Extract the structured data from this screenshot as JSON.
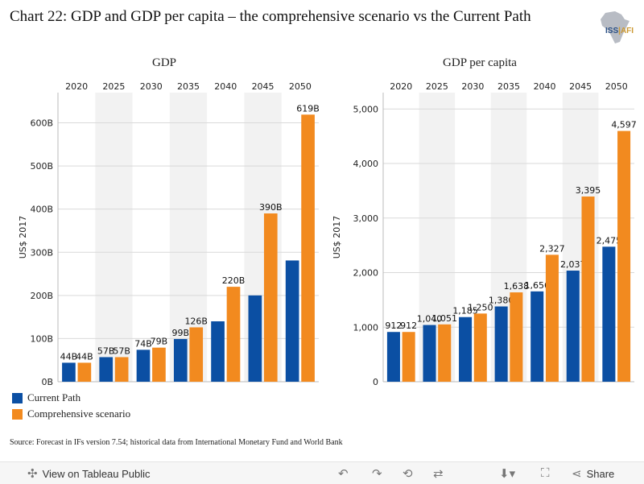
{
  "title": "Chart 22: GDP and GDP per capita – the comprehensive scenario vs the Current Path",
  "logo": {
    "text_iss": "ISS",
    "text_afi": "AFI"
  },
  "colors": {
    "current_path": "#0b4fa3",
    "comprehensive": "#f28a1f",
    "band": "#f2f2f2",
    "grid": "#d9d9d9"
  },
  "legend": [
    {
      "label": "Current Path",
      "color": "#0b4fa3"
    },
    {
      "label": "Comprehensive scenario",
      "color": "#f28a1f"
    }
  ],
  "chart_data": [
    {
      "type": "bar",
      "title": "GDP",
      "ylabel": "US$ 2017",
      "categories": [
        "2020",
        "2025",
        "2030",
        "2035",
        "2040",
        "2045",
        "2050"
      ],
      "ylim": [
        0,
        670
      ],
      "yticks": [
        0,
        100,
        200,
        300,
        400,
        500,
        600
      ],
      "ytick_labels": [
        "0B",
        "100B",
        "200B",
        "300B",
        "400B",
        "500B",
        "600B"
      ],
      "series": [
        {
          "name": "Current Path",
          "values": [
            44,
            57,
            74,
            99,
            140,
            200,
            281
          ],
          "labels": [
            "44B",
            "57B",
            "74B",
            "99B",
            "",
            "",
            ""
          ]
        },
        {
          "name": "Comprehensive scenario",
          "values": [
            44,
            57,
            79,
            126,
            220,
            390,
            619
          ],
          "labels": [
            "44B",
            "57B",
            "79B",
            "126B",
            "220B",
            "390B",
            "619B"
          ]
        }
      ]
    },
    {
      "type": "bar",
      "title": "GDP per capita",
      "ylabel": "US$ 2017",
      "categories": [
        "2020",
        "2025",
        "2030",
        "2035",
        "2040",
        "2045",
        "2050"
      ],
      "ylim": [
        0,
        5300
      ],
      "yticks": [
        0,
        1000,
        2000,
        3000,
        4000,
        5000
      ],
      "ytick_labels": [
        "0",
        "1,000",
        "2,000",
        "3,000",
        "4,000",
        "5,000"
      ],
      "series": [
        {
          "name": "Current Path",
          "values": [
            912,
            1040,
            1185,
            1380,
            1656,
            2037,
            2475
          ],
          "labels": [
            "912",
            "1,040",
            "1,185",
            "1,380",
            "1,656",
            "2,037",
            "2,475"
          ]
        },
        {
          "name": "Comprehensive scenario",
          "values": [
            912,
            1051,
            1250,
            1638,
            2327,
            3395,
            4597
          ],
          "labels": [
            "912",
            "1,051",
            "1,250",
            "1,638",
            "2,327",
            "3,395",
            "4,597"
          ]
        }
      ]
    }
  ],
  "source": "Source: Forecast in IFs version 7.54; historical data from International Monetary Fund and World Bank",
  "toolbar": {
    "view_label": "View on Tableau Public",
    "share_label": "Share"
  }
}
